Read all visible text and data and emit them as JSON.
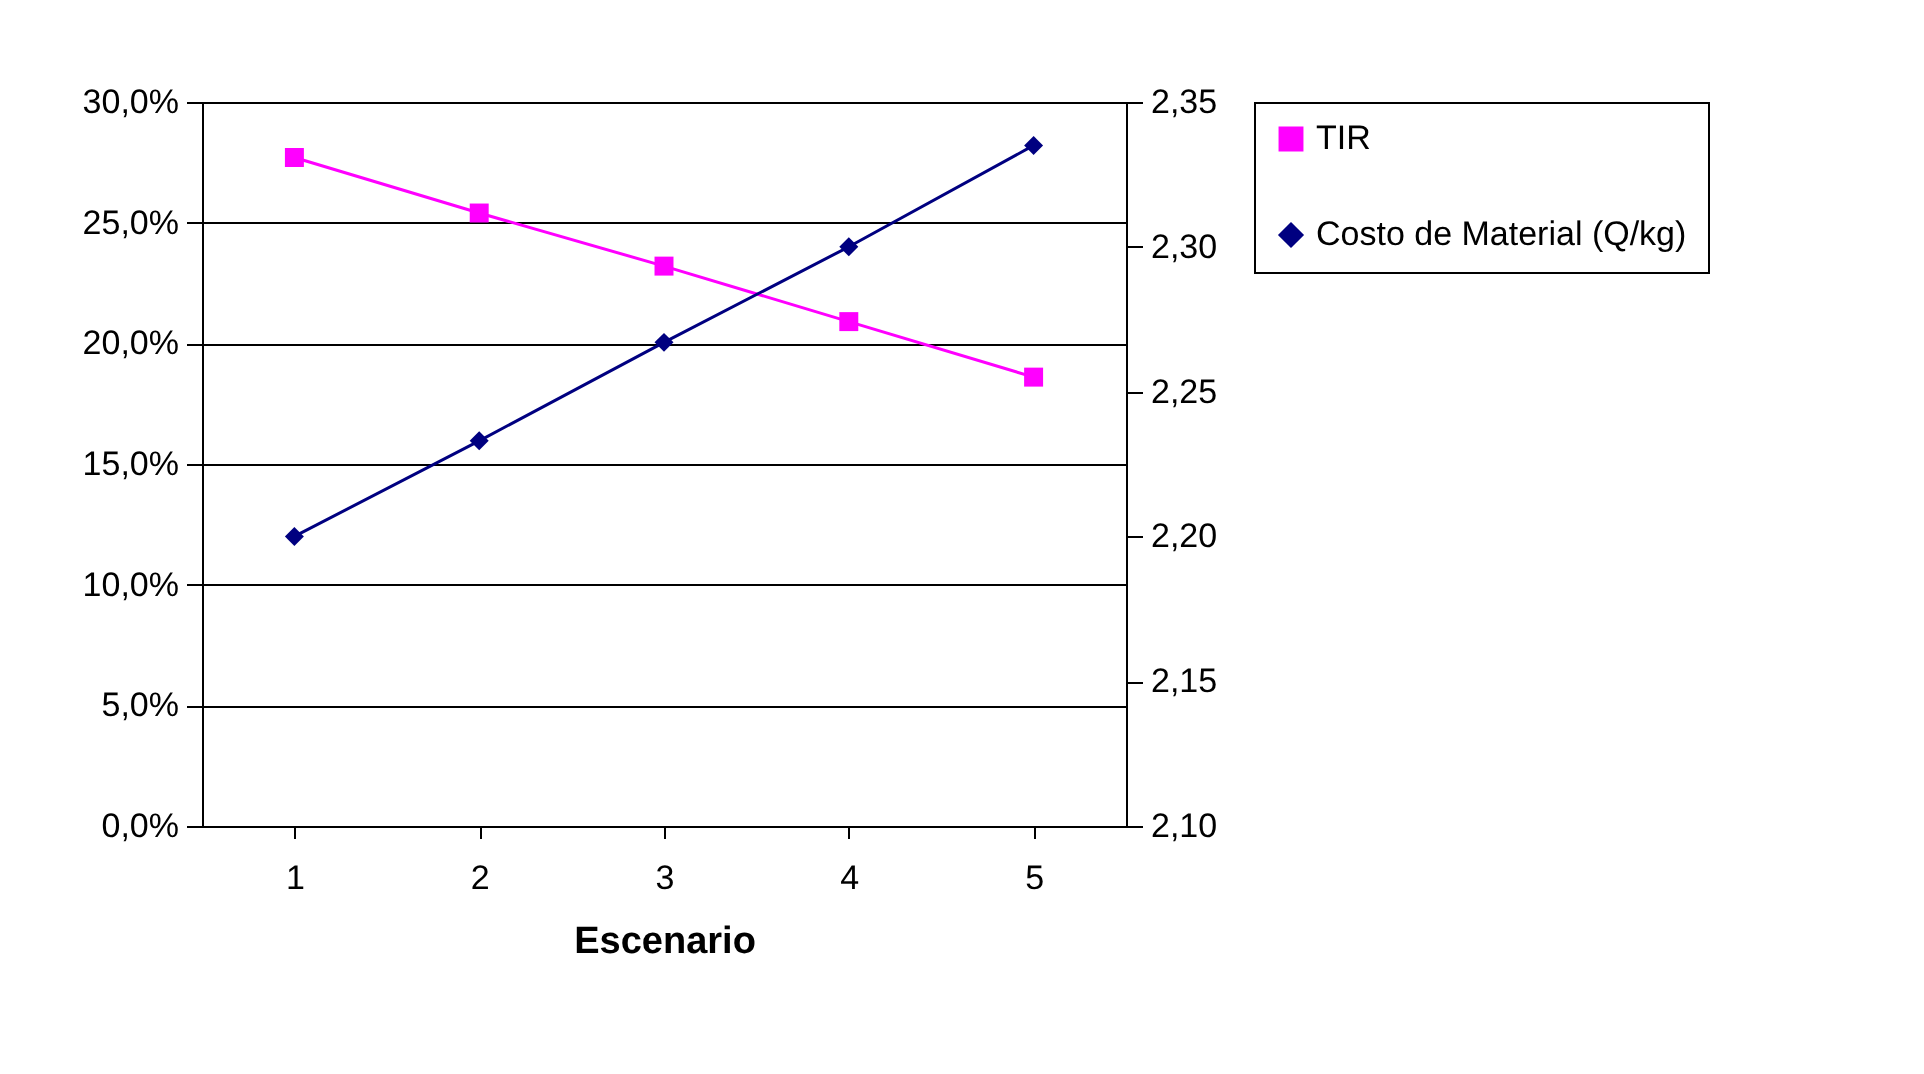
{
  "chart_data": {
    "type": "line",
    "xlabel": "Escenario",
    "categories": [
      "1",
      "2",
      "3",
      "4",
      "5"
    ],
    "series": [
      {
        "name": "TIR",
        "color": "#ff00ff",
        "marker": "square",
        "values": [
          27.7,
          25.4,
          23.2,
          20.9,
          18.6
        ]
      },
      {
        "name": "Costo de Material (Q/kg)",
        "color": "#000080",
        "marker": "diamond",
        "axis": "y2",
        "values": [
          2.2,
          2.233,
          2.267,
          2.3,
          2.335
        ]
      }
    ],
    "ylim": [
      0,
      30
    ],
    "yticks": [
      {
        "value": 0,
        "label": "0,0%"
      },
      {
        "value": 5,
        "label": "5,0%"
      },
      {
        "value": 10,
        "label": "10,0%"
      },
      {
        "value": 15,
        "label": "15,0%"
      },
      {
        "value": 20,
        "label": "20,0%"
      },
      {
        "value": 25,
        "label": "25,0%"
      },
      {
        "value": 30,
        "label": "30,0%"
      }
    ],
    "y2lim": [
      2.1,
      2.35
    ],
    "y2ticks": [
      {
        "value": 2.1,
        "label": "2,10"
      },
      {
        "value": 2.15,
        "label": "2,15"
      },
      {
        "value": 2.2,
        "label": "2,20"
      },
      {
        "value": 2.25,
        "label": "2,25"
      },
      {
        "value": 2.3,
        "label": "2,30"
      },
      {
        "value": 2.35,
        "label": "2,35"
      }
    ],
    "grid": "y",
    "legend": "right"
  }
}
